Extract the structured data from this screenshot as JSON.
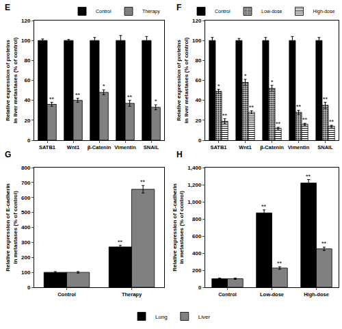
{
  "chart_data": [
    {
      "type": "bar",
      "panel": "E",
      "y_label": "Relative expression of proteins\nin liver metastases (% of control)",
      "categories": [
        "SATB1",
        "Wnt1",
        "β-Catenin",
        "Vimentin",
        "SNAIL"
      ],
      "series": [
        {
          "name": "Control",
          "color": "#000000",
          "values": [
            100,
            100,
            100,
            100,
            100
          ],
          "errors": [
            1.5,
            1,
            3,
            5,
            4
          ],
          "significance": [
            null,
            null,
            null,
            null,
            null
          ]
        },
        {
          "name": "Therapy",
          "color": "#808080",
          "values": [
            36,
            40,
            48,
            37,
            33
          ],
          "errors": [
            2,
            2,
            2.5,
            3,
            2.5
          ],
          "significance": [
            "**",
            "**",
            "*",
            "**",
            "*"
          ]
        }
      ],
      "ylim": [
        0,
        120
      ],
      "yticks": [
        0,
        20,
        40,
        60,
        80,
        100,
        120
      ],
      "grid": false,
      "legend": "top"
    },
    {
      "type": "bar",
      "panel": "F",
      "y_label": "Relative expression of proteins\nin liver metastases (% of control)",
      "categories": [
        "SATB1",
        "Wnt1",
        "β-Catenin",
        "Vimentin",
        "SNAIL"
      ],
      "series": [
        {
          "name": "Control",
          "color": "#000000",
          "values": [
            100,
            100,
            100,
            100,
            100
          ],
          "errors": [
            3,
            2,
            3,
            4,
            3
          ],
          "significance": [
            null,
            null,
            null,
            null,
            null
          ]
        },
        {
          "name": "Low-dose",
          "color": "#c8c8c8",
          "marker": "dotted",
          "values": [
            49,
            58,
            52,
            28,
            35
          ],
          "errors": [
            2,
            3,
            3,
            2,
            3
          ],
          "significance": [
            "*",
            "*",
            "*",
            "**",
            "**"
          ]
        },
        {
          "name": "High-dose",
          "color": "#ffffff",
          "marker": "striped",
          "values": [
            19,
            28,
            12,
            16,
            14
          ],
          "errors": [
            2.5,
            1.5,
            1,
            1,
            1
          ],
          "significance": [
            "**",
            "**",
            "**",
            "**",
            "**"
          ]
        }
      ],
      "ylim": [
        0,
        120
      ],
      "yticks": [
        0,
        20,
        40,
        60,
        80,
        100,
        120
      ],
      "grid": false,
      "legend": "top"
    },
    {
      "type": "bar",
      "panel": "G",
      "y_label": "Relative expression of E-cadherin\nin metastases (% of control)",
      "categories": [
        "Control",
        "Therapy"
      ],
      "series": [
        {
          "name": "Lung",
          "color": "#000000",
          "values": [
            100,
            270
          ],
          "errors": [
            5,
            10
          ],
          "significance": [
            null,
            "**"
          ]
        },
        {
          "name": "Liver",
          "color": "#808080",
          "values": [
            100,
            655
          ],
          "errors": [
            5,
            25
          ],
          "significance": [
            null,
            "**"
          ]
        }
      ],
      "ylim": [
        0,
        800
      ],
      "yticks": [
        0,
        100,
        200,
        300,
        400,
        500,
        600,
        700,
        800
      ],
      "grid": false,
      "legend": "bottom"
    },
    {
      "type": "bar",
      "panel": "H",
      "y_label": "Relative expression of E-cadherin\nin metastases (% of control)",
      "categories": [
        "Control",
        "Low-dose",
        "High-dose"
      ],
      "series": [
        {
          "name": "Lung",
          "color": "#000000",
          "values": [
            100,
            870,
            1220
          ],
          "errors": [
            8,
            35,
            40
          ],
          "significance": [
            null,
            "**",
            "**"
          ]
        },
        {
          "name": "Liver",
          "color": "#808080",
          "values": [
            100,
            225,
            450
          ],
          "errors": [
            8,
            15,
            20
          ],
          "significance": [
            null,
            "**",
            "**"
          ]
        }
      ],
      "ylim": [
        0,
        1400
      ],
      "yticks": [
        0,
        200,
        400,
        600,
        800,
        {
          "value": 1000,
          "label": "1,000"
        },
        {
          "value": 1200,
          "label": "1,200"
        },
        {
          "value": 1400,
          "label": "1,400"
        }
      ],
      "grid": false,
      "legend": "bottom"
    }
  ]
}
